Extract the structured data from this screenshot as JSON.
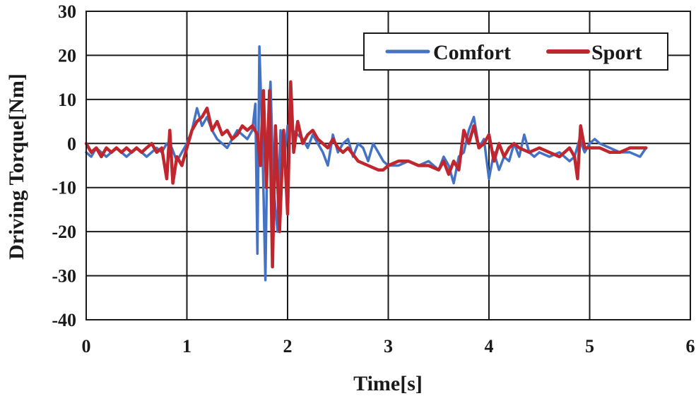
{
  "chart_data": {
    "type": "line",
    "xlabel": "Time[s]",
    "ylabel": "Driving Torque[Nm]",
    "xlim": [
      0,
      6
    ],
    "ylim": [
      -40,
      30
    ],
    "xticks": [
      0,
      1,
      2,
      3,
      4,
      5,
      6
    ],
    "yticks": [
      30,
      20,
      10,
      0,
      -10,
      -20,
      -30,
      -40
    ],
    "grid": true,
    "legend": "top-right",
    "series": [
      {
        "name": "Comfort",
        "color": "#4472C4",
        "x": [
          0.0,
          0.05,
          0.1,
          0.15,
          0.2,
          0.25,
          0.3,
          0.35,
          0.4,
          0.45,
          0.5,
          0.55,
          0.6,
          0.65,
          0.7,
          0.75,
          0.8,
          0.85,
          0.9,
          0.95,
          1.0,
          1.05,
          1.1,
          1.15,
          1.2,
          1.25,
          1.3,
          1.35,
          1.4,
          1.45,
          1.5,
          1.55,
          1.6,
          1.65,
          1.68,
          1.7,
          1.72,
          1.75,
          1.78,
          1.8,
          1.83,
          1.86,
          1.9,
          1.93,
          1.96,
          2.0,
          2.05,
          2.1,
          2.15,
          2.2,
          2.25,
          2.3,
          2.35,
          2.4,
          2.45,
          2.5,
          2.55,
          2.6,
          2.65,
          2.7,
          2.75,
          2.8,
          2.85,
          2.9,
          2.95,
          3.0,
          3.1,
          3.2,
          3.3,
          3.4,
          3.5,
          3.55,
          3.6,
          3.65,
          3.7,
          3.75,
          3.8,
          3.85,
          3.9,
          3.95,
          4.0,
          4.05,
          4.1,
          4.15,
          4.2,
          4.25,
          4.3,
          4.35,
          4.4,
          4.45,
          4.5,
          4.6,
          4.7,
          4.8,
          4.85,
          4.9,
          4.95,
          5.0,
          5.05,
          5.1,
          5.2,
          5.3,
          5.4,
          5.5,
          5.56
        ],
        "y": [
          -2,
          -3,
          -1,
          -2,
          -3,
          -2,
          -1,
          -2,
          -3,
          -2,
          -1,
          -2,
          -3,
          -2,
          -1,
          -2,
          0,
          -1,
          -4,
          -2,
          0,
          3,
          8,
          4,
          6,
          3,
          1,
          0,
          -1,
          1,
          3,
          2,
          1,
          3,
          9,
          -25,
          22,
          0,
          -31,
          2,
          14,
          -10,
          -20,
          3,
          -5,
          4,
          3,
          2,
          1,
          -1,
          2,
          0,
          -2,
          -5,
          2,
          -2,
          0,
          1,
          -3,
          0,
          -1,
          -4,
          0,
          -2,
          -4,
          -5,
          -5,
          -4,
          -5,
          -4,
          -6,
          -3,
          -5,
          -9,
          -3,
          -2,
          3,
          6,
          -1,
          1,
          -8,
          -2,
          -6,
          -3,
          -4,
          0,
          -3,
          2,
          -2,
          -3,
          -2,
          -3,
          -2,
          -4,
          -3,
          1,
          -2,
          0,
          1,
          0,
          -1,
          -2,
          -2,
          -3,
          -1
        ]
      },
      {
        "name": "Sport",
        "color": "#C0262D",
        "x": [
          0.0,
          0.05,
          0.1,
          0.15,
          0.2,
          0.25,
          0.3,
          0.35,
          0.4,
          0.45,
          0.5,
          0.55,
          0.6,
          0.65,
          0.7,
          0.75,
          0.8,
          0.83,
          0.86,
          0.9,
          0.95,
          1.0,
          1.05,
          1.1,
          1.15,
          1.2,
          1.25,
          1.3,
          1.35,
          1.4,
          1.45,
          1.5,
          1.55,
          1.6,
          1.65,
          1.7,
          1.73,
          1.76,
          1.79,
          1.82,
          1.85,
          1.88,
          1.92,
          1.96,
          2.0,
          2.03,
          2.06,
          2.1,
          2.15,
          2.2,
          2.25,
          2.3,
          2.35,
          2.4,
          2.45,
          2.5,
          2.55,
          2.6,
          2.7,
          2.8,
          2.9,
          2.95,
          3.0,
          3.1,
          3.2,
          3.3,
          3.4,
          3.5,
          3.55,
          3.6,
          3.65,
          3.7,
          3.75,
          3.8,
          3.85,
          3.9,
          3.95,
          4.0,
          4.05,
          4.1,
          4.15,
          4.2,
          4.25,
          4.3,
          4.4,
          4.5,
          4.6,
          4.7,
          4.75,
          4.8,
          4.85,
          4.88,
          4.91,
          4.95,
          5.0,
          5.1,
          5.2,
          5.3,
          5.4,
          5.5,
          5.56
        ],
        "y": [
          0,
          -2,
          -1,
          -3,
          -1,
          -2,
          -1,
          -2,
          -1,
          -2,
          -1,
          -2,
          -1,
          0,
          -2,
          -1,
          -8,
          3,
          -9,
          -3,
          -5,
          -1,
          3,
          5,
          6,
          8,
          3,
          5,
          2,
          3,
          1,
          2,
          4,
          3,
          4,
          2,
          -5,
          12,
          -10,
          12,
          -28,
          4,
          -20,
          3,
          -16,
          14,
          -2,
          5,
          0,
          2,
          3,
          1,
          0,
          -1,
          1,
          -1,
          -2,
          -1,
          -4,
          -5,
          -6,
          -6,
          -5,
          -4,
          -4,
          -5,
          -5,
          -6,
          -4,
          -7,
          -4,
          -6,
          3,
          0,
          4,
          -1,
          0,
          2,
          -4,
          0,
          -3,
          -1,
          0,
          -1,
          -2,
          -1,
          -2,
          -3,
          -2,
          -1,
          -3,
          -8,
          4,
          -1,
          -1,
          -1,
          -2,
          -2,
          -1,
          -1,
          -1
        ]
      }
    ]
  }
}
